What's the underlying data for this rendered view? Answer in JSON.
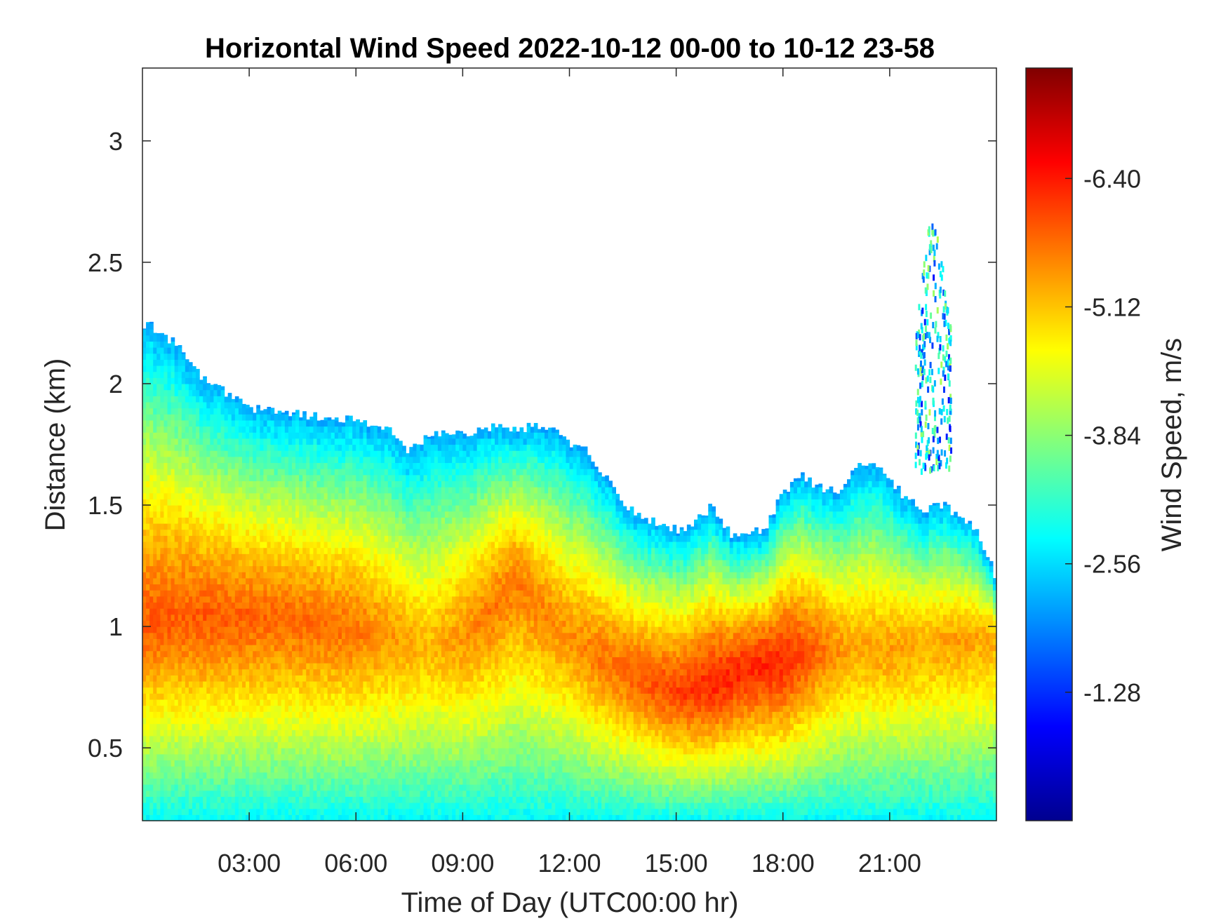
{
  "chart_data": {
    "type": "heatmap",
    "title": "Horizontal Wind Speed 2022-10-12 00-00 to 10-12 23-58",
    "xlabel": "Time of Day (UTC00:00 hr)",
    "ylabel": "Distance (km)",
    "xlim_hours": [
      0,
      24
    ],
    "ylim": [
      0.2,
      3.3
    ],
    "x_ticks": [
      "03:00",
      "06:00",
      "09:00",
      "12:00",
      "15:00",
      "18:00",
      "21:00"
    ],
    "x_tick_hours": [
      3,
      6,
      9,
      12,
      15,
      18,
      21
    ],
    "y_ticks": [
      "0.5",
      "1",
      "1.5",
      "2",
      "2.5",
      "3"
    ],
    "y_tick_values": [
      0.5,
      1,
      1.5,
      2,
      2.5,
      3
    ],
    "grid": false,
    "colorbar": {
      "label": "Wind Speed, m/s",
      "range": [
        0,
        -7.5
      ],
      "ticks": [
        "-1.28",
        "-2.56",
        "-3.84",
        "-5.12",
        "-6.40"
      ],
      "tick_values": [
        -1.28,
        -2.56,
        -3.84,
        -5.12,
        -6.4
      ],
      "colormap": "jet"
    },
    "data_top_km": {
      "hours": [
        0,
        0.5,
        1,
        1.5,
        2,
        2.5,
        3,
        4,
        5,
        6,
        7,
        7.5,
        8,
        9,
        10,
        11,
        11.5,
        12,
        12.5,
        13,
        13.5,
        14,
        14.5,
        15,
        15.5,
        16,
        16.5,
        17,
        17.5,
        18,
        18.5,
        19,
        19.5,
        20,
        20.5,
        21,
        21.5,
        22,
        22.5,
        23,
        23.5,
        24
      ],
      "km": [
        2.25,
        2.22,
        2.15,
        2.05,
        2.0,
        1.95,
        1.9,
        1.88,
        1.86,
        1.85,
        1.8,
        1.72,
        1.78,
        1.8,
        1.82,
        1.82,
        1.83,
        1.76,
        1.72,
        1.62,
        1.5,
        1.45,
        1.42,
        1.4,
        1.42,
        1.5,
        1.38,
        1.38,
        1.4,
        1.55,
        1.62,
        1.58,
        1.55,
        1.65,
        1.68,
        1.6,
        1.52,
        1.48,
        1.5,
        1.45,
        1.38,
        1.2
      ]
    },
    "core_max_km": {
      "hours": [
        0,
        1,
        2,
        3,
        4,
        5,
        6,
        7,
        8,
        9,
        10,
        10.5,
        11,
        12,
        13,
        14,
        15,
        16,
        17,
        18,
        19,
        20,
        21,
        22,
        23,
        24
      ],
      "km": [
        1.0,
        1.02,
        1.03,
        1.03,
        1.02,
        1.0,
        0.98,
        0.95,
        0.9,
        0.95,
        1.1,
        1.2,
        1.1,
        0.95,
        0.85,
        0.78,
        0.72,
        0.75,
        0.82,
        0.85,
        0.9,
        0.9,
        0.9,
        0.92,
        0.95,
        0.95
      ]
    },
    "core_peak_speed": {
      "hours": [
        0,
        2,
        4,
        6,
        8,
        9,
        10,
        11,
        12,
        13,
        14,
        15,
        16,
        17,
        18,
        19,
        20,
        21,
        22,
        23,
        24
      ],
      "value": [
        -5.9,
        -5.9,
        -5.8,
        -5.7,
        -5.2,
        -5.5,
        -5.7,
        -5.6,
        -5.5,
        -5.7,
        -5.9,
        -6.1,
        -6.3,
        -6.3,
        -6.3,
        -5.8,
        -5.3,
        -5.4,
        -5.3,
        -5.4,
        -5.3
      ]
    },
    "upper_patch": {
      "hours": [
        21.7,
        22.7
      ],
      "km": [
        1.65,
        2.8
      ],
      "values": [
        -1.0,
        -4.2
      ]
    }
  }
}
